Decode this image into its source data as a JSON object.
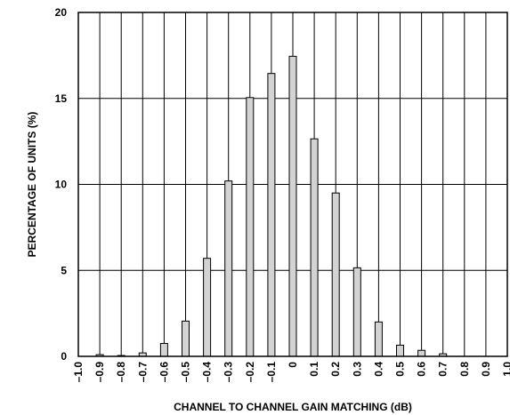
{
  "chart_data": {
    "type": "bar",
    "xlabel": "CHANNEL TO CHANNEL GAIN MATCHING (dB)",
    "ylabel": "PERCENTAGE OF UNITS (%)",
    "xlim": [
      -1.0,
      1.0
    ],
    "ylim": [
      0,
      20
    ],
    "grid": true,
    "bar_color": "#d3d3d3",
    "x_tick_labels": [
      "–1.0",
      "–0.9",
      "–0.8",
      "–0.7",
      "–0.6",
      "–0.5",
      "–0.4",
      "–0.3",
      "–0.2",
      "–0.1",
      "0",
      "0.1",
      "0.2",
      "0.3",
      "0.4",
      "0.5",
      "0.6",
      "0.7",
      "0.8",
      "0.9",
      "1.0"
    ],
    "y_tick_labels": [
      "0",
      "5",
      "10",
      "15",
      "20"
    ],
    "y_ticks": [
      0,
      5,
      10,
      15,
      20
    ],
    "x": [
      -0.9,
      -0.8,
      -0.7,
      -0.6,
      -0.5,
      -0.4,
      -0.3,
      -0.2,
      -0.1,
      0.0,
      0.1,
      0.2,
      0.3,
      0.4,
      0.5,
      0.6,
      0.7
    ],
    "values": [
      0.1,
      0.05,
      0.2,
      0.75,
      2.05,
      5.7,
      10.2,
      15.05,
      16.45,
      17.45,
      12.65,
      9.5,
      5.15,
      2.0,
      0.65,
      0.35,
      0.15
    ]
  }
}
